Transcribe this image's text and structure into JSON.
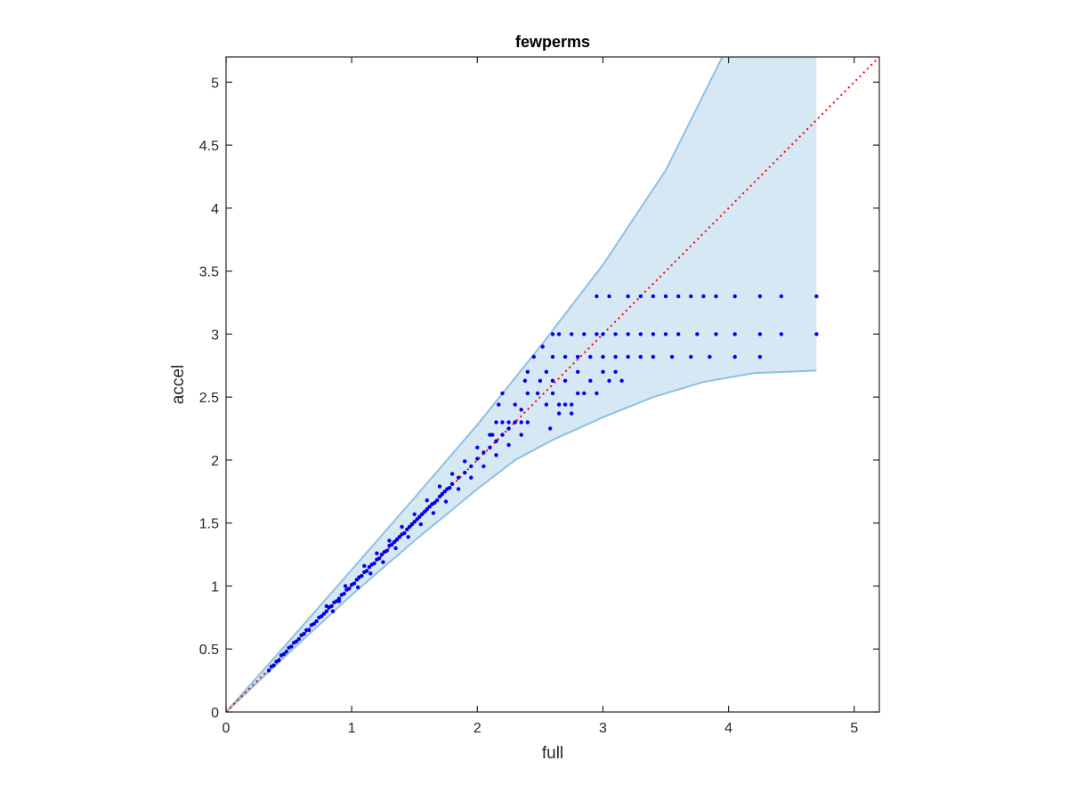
{
  "chart_data": {
    "type": "scatter",
    "title": "fewperms",
    "xlabel": "full",
    "ylabel": "accel",
    "xlim": [
      0,
      5.2
    ],
    "ylim": [
      0,
      5.2
    ],
    "xticks": [
      0,
      1,
      2,
      3,
      4,
      5
    ],
    "xtick_labels": [
      "0",
      "1",
      "2",
      "3",
      "4",
      "5"
    ],
    "yticks": [
      0,
      0.5,
      1,
      1.5,
      2,
      2.5,
      3,
      3.5,
      4,
      4.5,
      5
    ],
    "ytick_labels": [
      "0",
      "0.5",
      "1",
      "1.5",
      "2",
      "2.5",
      "3",
      "3.5",
      "4",
      "4.5",
      "5"
    ],
    "grid": false,
    "colors": {
      "points": "#0000ee",
      "reference_line": "#ff0000",
      "band_fill": "#d6e8f4",
      "band_edge": "#8ec0e0",
      "axes": "#262626"
    },
    "reference_line": {
      "style": "dotted",
      "x": [
        0,
        5.2
      ],
      "y": [
        0,
        5.2
      ]
    },
    "band": {
      "upper": [
        [
          0,
          0
        ],
        [
          0.5,
          0.56
        ],
        [
          1,
          1.13
        ],
        [
          1.5,
          1.7
        ],
        [
          2,
          2.28
        ],
        [
          2.5,
          2.9
        ],
        [
          3,
          3.55
        ],
        [
          3.5,
          4.3
        ],
        [
          3.95,
          5.2
        ],
        [
          4.7,
          5.2
        ]
      ],
      "lower": [
        [
          4.7,
          2.71
        ],
        [
          4.2,
          2.69
        ],
        [
          3.8,
          2.62
        ],
        [
          3.4,
          2.5
        ],
        [
          3.0,
          2.34
        ],
        [
          2.6,
          2.16
        ],
        [
          2.3,
          2.0
        ],
        [
          2.0,
          1.77
        ],
        [
          1.5,
          1.36
        ],
        [
          1.0,
          0.93
        ],
        [
          0.5,
          0.47
        ],
        [
          0,
          0
        ]
      ]
    },
    "series": [
      {
        "points": [
          [
            0.34,
            0.33
          ],
          [
            0.36,
            0.36
          ],
          [
            0.38,
            0.37
          ],
          [
            0.4,
            0.4
          ],
          [
            0.42,
            0.41
          ],
          [
            0.44,
            0.45
          ],
          [
            0.46,
            0.46
          ],
          [
            0.48,
            0.48
          ],
          [
            0.5,
            0.51
          ],
          [
            0.52,
            0.52
          ],
          [
            0.54,
            0.55
          ],
          [
            0.56,
            0.56
          ],
          [
            0.58,
            0.58
          ],
          [
            0.6,
            0.61
          ],
          [
            0.62,
            0.62
          ],
          [
            0.64,
            0.65
          ],
          [
            0.66,
            0.65
          ],
          [
            0.68,
            0.69
          ],
          [
            0.7,
            0.7
          ],
          [
            0.72,
            0.72
          ],
          [
            0.74,
            0.75
          ],
          [
            0.76,
            0.76
          ],
          [
            0.78,
            0.78
          ],
          [
            0.8,
            0.8
          ],
          [
            0.82,
            0.83
          ],
          [
            0.84,
            0.84
          ],
          [
            0.86,
            0.87
          ],
          [
            0.88,
            0.88
          ],
          [
            0.9,
            0.9
          ],
          [
            0.92,
            0.93
          ],
          [
            0.94,
            0.94
          ],
          [
            0.96,
            0.97
          ],
          [
            0.98,
            0.98
          ],
          [
            1.0,
            1.01
          ],
          [
            1.02,
            1.02
          ],
          [
            1.04,
            1.05
          ],
          [
            1.06,
            1.07
          ],
          [
            1.08,
            1.08
          ],
          [
            1.1,
            1.11
          ],
          [
            1.12,
            1.12
          ],
          [
            1.14,
            1.15
          ],
          [
            1.16,
            1.17
          ],
          [
            1.18,
            1.18
          ],
          [
            1.2,
            1.21
          ],
          [
            1.22,
            1.22
          ],
          [
            1.24,
            1.25
          ],
          [
            1.26,
            1.27
          ],
          [
            1.28,
            1.28
          ],
          [
            1.3,
            1.32
          ],
          [
            1.32,
            1.33
          ],
          [
            1.34,
            1.35
          ],
          [
            1.36,
            1.37
          ],
          [
            1.38,
            1.39
          ],
          [
            1.4,
            1.41
          ],
          [
            1.42,
            1.42
          ],
          [
            1.44,
            1.45
          ],
          [
            1.46,
            1.47
          ],
          [
            1.48,
            1.49
          ],
          [
            1.5,
            1.51
          ],
          [
            1.52,
            1.53
          ],
          [
            1.54,
            1.55
          ],
          [
            1.56,
            1.57
          ],
          [
            1.58,
            1.59
          ],
          [
            1.6,
            1.61
          ],
          [
            1.62,
            1.63
          ],
          [
            1.64,
            1.65
          ],
          [
            1.66,
            1.66
          ],
          [
            1.68,
            1.68
          ],
          [
            1.7,
            1.71
          ],
          [
            1.72,
            1.73
          ],
          [
            1.74,
            1.75
          ],
          [
            1.76,
            1.77
          ],
          [
            1.78,
            1.78
          ],
          [
            1.8,
            1.81
          ],
          [
            1.85,
            1.86
          ],
          [
            1.9,
            1.9
          ],
          [
            1.95,
            1.95
          ],
          [
            2.0,
            2.01
          ],
          [
            2.05,
            2.06
          ],
          [
            2.1,
            2.1
          ],
          [
            2.15,
            2.15
          ],
          [
            2.2,
            2.2
          ],
          [
            2.25,
            2.25
          ],
          [
            0.85,
            0.8
          ],
          [
            0.9,
            0.88
          ],
          [
            1.05,
            0.99
          ],
          [
            1.15,
            1.1
          ],
          [
            1.25,
            1.19
          ],
          [
            1.35,
            1.3
          ],
          [
            1.45,
            1.39
          ],
          [
            1.55,
            1.49
          ],
          [
            1.65,
            1.58
          ],
          [
            1.75,
            1.67
          ],
          [
            1.85,
            1.77
          ],
          [
            1.95,
            1.86
          ],
          [
            2.05,
            1.95
          ],
          [
            2.15,
            2.04
          ],
          [
            2.25,
            2.12
          ],
          [
            2.35,
            2.2
          ],
          [
            0.8,
            0.84
          ],
          [
            0.95,
            1.0
          ],
          [
            1.1,
            1.16
          ],
          [
            1.2,
            1.26
          ],
          [
            1.3,
            1.36
          ],
          [
            1.4,
            1.47
          ],
          [
            1.5,
            1.57
          ],
          [
            1.6,
            1.68
          ],
          [
            1.7,
            1.79
          ],
          [
            1.8,
            1.89
          ],
          [
            1.9,
            1.99
          ],
          [
            2.0,
            2.1
          ],
          [
            2.1,
            2.2
          ],
          [
            2.2,
            2.3
          ],
          [
            2.12,
            2.2
          ],
          [
            2.15,
            2.3
          ],
          [
            2.17,
            2.44
          ],
          [
            2.2,
            2.53
          ],
          [
            2.25,
            2.3
          ],
          [
            2.3,
            2.3
          ],
          [
            2.35,
            2.3
          ],
          [
            2.4,
            2.3
          ],
          [
            2.3,
            2.44
          ],
          [
            2.4,
            2.53
          ],
          [
            2.38,
            2.63
          ],
          [
            2.4,
            2.7
          ],
          [
            2.45,
            2.82
          ],
          [
            2.48,
            2.53
          ],
          [
            2.55,
            2.44
          ],
          [
            2.6,
            2.53
          ],
          [
            2.65,
            2.44
          ],
          [
            2.7,
            2.44
          ],
          [
            2.6,
            2.63
          ],
          [
            2.75,
            2.44
          ],
          [
            2.8,
            2.53
          ],
          [
            2.52,
            2.9
          ],
          [
            2.6,
            3.0
          ],
          [
            2.65,
            3.0
          ],
          [
            2.75,
            3.0
          ],
          [
            2.85,
            3.0
          ],
          [
            2.95,
            3.0
          ],
          [
            3.0,
            3.0
          ],
          [
            3.1,
            3.0
          ],
          [
            3.2,
            3.0
          ],
          [
            3.3,
            3.0
          ],
          [
            3.4,
            3.0
          ],
          [
            3.5,
            3.0
          ],
          [
            3.6,
            3.0
          ],
          [
            3.75,
            3.0
          ],
          [
            3.9,
            3.0
          ],
          [
            4.05,
            3.0
          ],
          [
            4.25,
            3.0
          ],
          [
            4.42,
            3.0
          ],
          [
            4.7,
            3.0
          ],
          [
            2.95,
            3.3
          ],
          [
            3.05,
            3.3
          ],
          [
            3.2,
            3.3
          ],
          [
            3.3,
            3.3
          ],
          [
            3.4,
            3.3
          ],
          [
            3.5,
            3.3
          ],
          [
            3.6,
            3.3
          ],
          [
            3.7,
            3.3
          ],
          [
            3.8,
            3.3
          ],
          [
            3.9,
            3.3
          ],
          [
            4.05,
            3.3
          ],
          [
            4.25,
            3.3
          ],
          [
            4.42,
            3.3
          ],
          [
            4.7,
            3.3
          ],
          [
            2.6,
            2.82
          ],
          [
            2.7,
            2.82
          ],
          [
            2.8,
            2.82
          ],
          [
            2.9,
            2.82
          ],
          [
            3.0,
            2.82
          ],
          [
            3.1,
            2.82
          ],
          [
            3.2,
            2.82
          ],
          [
            3.3,
            2.82
          ],
          [
            3.4,
            2.82
          ],
          [
            3.55,
            2.82
          ],
          [
            3.7,
            2.82
          ],
          [
            3.85,
            2.82
          ],
          [
            4.05,
            2.82
          ],
          [
            4.25,
            2.82
          ],
          [
            2.7,
            2.63
          ],
          [
            2.9,
            2.63
          ],
          [
            3.05,
            2.63
          ],
          [
            3.15,
            2.63
          ],
          [
            2.8,
            2.7
          ],
          [
            3.0,
            2.7
          ],
          [
            3.1,
            2.7
          ],
          [
            2.85,
            2.53
          ],
          [
            2.95,
            2.53
          ],
          [
            2.75,
            2.37
          ],
          [
            2.65,
            2.37
          ],
          [
            2.5,
            2.63
          ],
          [
            2.55,
            2.7
          ],
          [
            2.35,
            2.4
          ],
          [
            2.58,
            2.25
          ]
        ]
      }
    ]
  }
}
